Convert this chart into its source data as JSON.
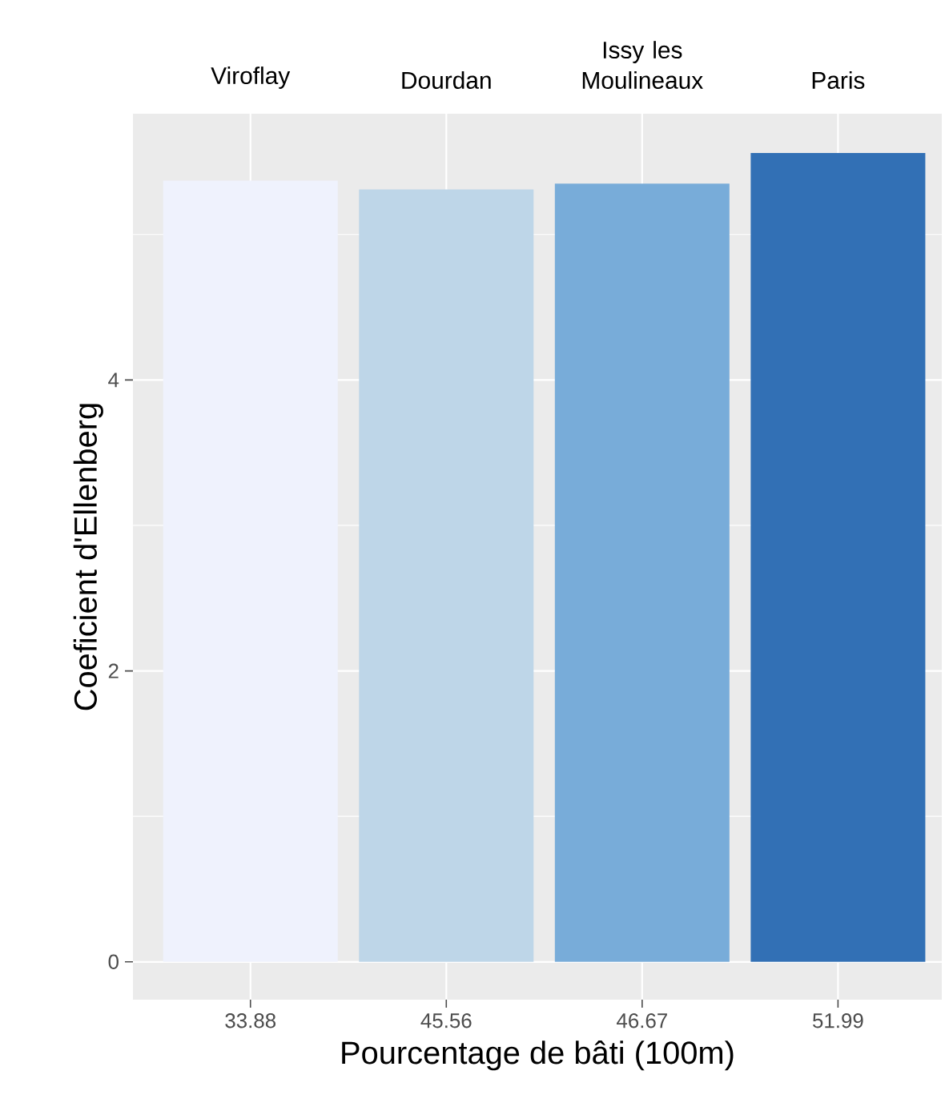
{
  "chart_data": {
    "type": "bar",
    "xlabel": "Pourcentage de bâti (100m)",
    "ylabel": "Coeficient d'Ellenberg",
    "categories": [
      "33.88",
      "45.56",
      "46.67",
      "51.99"
    ],
    "values": [
      5.37,
      5.31,
      5.35,
      5.56
    ],
    "colors": [
      "#eff2fd",
      "#bed6e8",
      "#78acd9",
      "#3270b5"
    ],
    "ylim": [
      -0.26,
      5.83
    ],
    "yticks": [
      0,
      2,
      4
    ],
    "grid": true,
    "annotations": [
      "Viroflay",
      "Dourdan",
      "Issy les Moulineaux",
      "Paris"
    ]
  }
}
